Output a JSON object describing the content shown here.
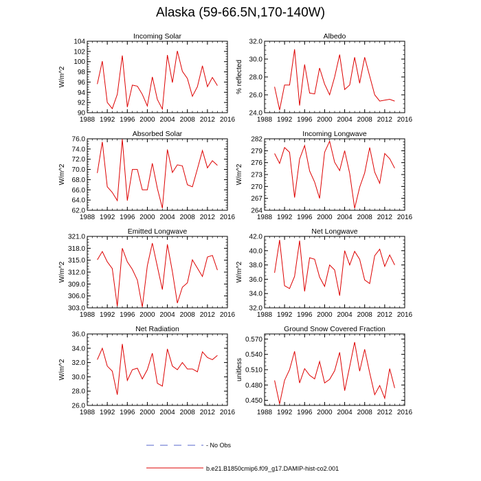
{
  "title": "Alaska (59-66.5N,170-140W)",
  "legend": {
    "obs_label": "- No Obs",
    "obs_color": "#5566cc",
    "model_label": "b.e21.B1850cmip6.f09_g17.DAMIP-hist-co2.001",
    "model_color": "#dd0000"
  },
  "chart_data": [
    {
      "type": "line",
      "title": "Incoming Solar",
      "ylabel": "W/m^2",
      "xlim": [
        1988,
        2016
      ],
      "ylim": [
        90,
        104
      ],
      "xticks": [
        "1988",
        "1992",
        "1996",
        "2000",
        "2004",
        "2008",
        "2012",
        "2016"
      ],
      "yticks": [
        "90",
        "92",
        "94",
        "96",
        "98",
        "100",
        "102",
        "104"
      ],
      "x": [
        1990,
        1991,
        1992,
        1993,
        1994,
        1995,
        1996,
        1997,
        1998,
        1999,
        2000,
        2001,
        2002,
        2003,
        2004,
        2005,
        2006,
        2007,
        2008,
        2009,
        2010,
        2011,
        2012,
        2013,
        2014
      ],
      "series": [
        {
          "values": [
            95.6,
            100.1,
            92.0,
            90.8,
            93.6,
            101.2,
            91.1,
            95.4,
            95.2,
            93.6,
            91.3,
            97.0,
            92.6,
            90.7,
            101.3,
            95.9,
            102.1,
            98.1,
            96.7,
            93.2,
            95.1,
            99.2,
            95.1,
            96.9,
            95.3
          ]
        }
      ]
    },
    {
      "type": "line",
      "title": "Albedo",
      "ylabel": "% reflected",
      "xlim": [
        1988,
        2016
      ],
      "ylim": [
        24.0,
        32.0
      ],
      "xticks": [
        "1988",
        "1992",
        "1996",
        "2000",
        "2004",
        "2008",
        "2012",
        "2016"
      ],
      "yticks": [
        "24.0",
        "26.0",
        "28.0",
        "30.0",
        "32.0"
      ],
      "x": [
        1990,
        1991,
        1992,
        1993,
        1994,
        1995,
        1996,
        1997,
        1998,
        1999,
        2000,
        2001,
        2002,
        2003,
        2004,
        2005,
        2006,
        2007,
        2008,
        2009,
        2010,
        2011,
        2012,
        2013,
        2014
      ],
      "series": [
        {
          "values": [
            26.9,
            24.3,
            27.1,
            27.1,
            31.1,
            24.8,
            29.4,
            26.2,
            26.1,
            29.0,
            27.2,
            26.0,
            28.0,
            30.5,
            26.6,
            27.1,
            30.2,
            27.3,
            30.2,
            28.1,
            26.0,
            25.3,
            25.4,
            25.5,
            25.3
          ]
        }
      ]
    },
    {
      "type": "line",
      "title": "Absorbed Solar",
      "ylabel": "W/m^2",
      "xlim": [
        1988,
        2016
      ],
      "ylim": [
        62.0,
        76.0
      ],
      "xticks": [
        "1988",
        "1992",
        "1996",
        "2000",
        "2004",
        "2008",
        "2012",
        "2016"
      ],
      "yticks": [
        "62.0",
        "64.0",
        "66.0",
        "68.0",
        "70.0",
        "72.0",
        "74.0",
        "76.0"
      ],
      "x": [
        1990,
        1991,
        1992,
        1993,
        1994,
        1995,
        1996,
        1997,
        1998,
        1999,
        2000,
        2001,
        2002,
        2003,
        2004,
        2005,
        2006,
        2007,
        2008,
        2009,
        2010,
        2011,
        2012,
        2013,
        2014
      ],
      "series": [
        {
          "values": [
            69.3,
            75.4,
            66.6,
            65.5,
            63.9,
            75.9,
            63.9,
            70.0,
            70.0,
            66.0,
            66.0,
            71.2,
            66.3,
            62.4,
            73.9,
            69.4,
            70.9,
            70.7,
            67.0,
            66.6,
            70.1,
            73.7,
            70.3,
            71.7,
            70.8
          ]
        }
      ]
    },
    {
      "type": "line",
      "title": "Incoming Longwave",
      "ylabel": "W/m^2",
      "xlim": [
        1988,
        2016
      ],
      "ylim": [
        264,
        282
      ],
      "xticks": [
        "1988",
        "1992",
        "1996",
        "2000",
        "2004",
        "2008",
        "2012",
        "2016"
      ],
      "yticks": [
        "264",
        "267",
        "270",
        "273",
        "276",
        "279",
        "282"
      ],
      "x": [
        1990,
        1991,
        1992,
        1993,
        1994,
        1995,
        1996,
        1997,
        1998,
        1999,
        2000,
        2001,
        2002,
        2003,
        2004,
        2005,
        2006,
        2007,
        2008,
        2009,
        2010,
        2011,
        2012,
        2013,
        2014
      ],
      "series": [
        {
          "values": [
            278.3,
            275.8,
            279.8,
            278.6,
            267.2,
            276.9,
            280.3,
            273.9,
            271.1,
            267.0,
            278.6,
            281.4,
            276.1,
            274.0,
            279.0,
            273.3,
            264.5,
            269.8,
            273.4,
            279.8,
            273.6,
            270.8,
            278.3,
            277.0,
            274.6
          ]
        }
      ]
    },
    {
      "type": "line",
      "title": "Emitted Longwave",
      "ylabel": "W/m^2",
      "xlim": [
        1988,
        2016
      ],
      "ylim": [
        303.0,
        321.0
      ],
      "xticks": [
        "1988",
        "1992",
        "1996",
        "2000",
        "2004",
        "2008",
        "2012",
        "2016"
      ],
      "yticks": [
        "303.0",
        "306.0",
        "309.0",
        "312.0",
        "315.0",
        "318.0",
        "321.0"
      ],
      "x": [
        1990,
        1991,
        1992,
        1993,
        1994,
        1995,
        1996,
        1997,
        1998,
        1999,
        2000,
        2001,
        2002,
        2003,
        2004,
        2005,
        2006,
        2007,
        2008,
        2009,
        2010,
        2011,
        2012,
        2013,
        2014
      ],
      "series": [
        {
          "values": [
            315.1,
            317.2,
            314.6,
            312.9,
            303.4,
            318.0,
            314.6,
            312.7,
            310.0,
            303.2,
            313.6,
            319.3,
            313.4,
            307.6,
            319.0,
            312.1,
            304.2,
            308.2,
            309.3,
            315.1,
            313.0,
            310.9,
            315.8,
            316.2,
            312.5
          ]
        }
      ]
    },
    {
      "type": "line",
      "title": "Net Longwave",
      "ylabel": "W/m^2",
      "xlim": [
        1988,
        2016
      ],
      "ylim": [
        32.0,
        42.0
      ],
      "xticks": [
        "1988",
        "1992",
        "1996",
        "2000",
        "2004",
        "2008",
        "2012",
        "2016"
      ],
      "yticks": [
        "32.0",
        "34.0",
        "36.0",
        "38.0",
        "40.0",
        "42.0"
      ],
      "x": [
        1990,
        1991,
        1992,
        1993,
        1994,
        1995,
        1996,
        1997,
        1998,
        1999,
        2000,
        2001,
        2002,
        2003,
        2004,
        2005,
        2006,
        2007,
        2008,
        2009,
        2010,
        2011,
        2012,
        2013,
        2014
      ],
      "series": [
        {
          "values": [
            36.9,
            41.5,
            35.1,
            34.7,
            36.4,
            41.4,
            34.3,
            39.0,
            38.8,
            36.3,
            35.0,
            38.0,
            37.3,
            33.7,
            40.0,
            38.0,
            39.9,
            38.8,
            35.9,
            35.4,
            39.3,
            40.2,
            37.8,
            39.4,
            38.0
          ]
        }
      ]
    },
    {
      "type": "line",
      "title": "Net Radiation",
      "ylabel": "W/m^2",
      "xlim": [
        1988,
        2016
      ],
      "ylim": [
        26.0,
        36.0
      ],
      "xticks": [
        "1988",
        "1992",
        "1996",
        "2000",
        "2004",
        "2008",
        "2012",
        "2016"
      ],
      "yticks": [
        "26.0",
        "28.0",
        "30.0",
        "32.0",
        "34.0",
        "36.0"
      ],
      "x": [
        1990,
        1991,
        1992,
        1993,
        1994,
        1995,
        1996,
        1997,
        1998,
        1999,
        2000,
        2001,
        2002,
        2003,
        2004,
        2005,
        2006,
        2007,
        2008,
        2009,
        2010,
        2011,
        2012,
        2013,
        2014
      ],
      "series": [
        {
          "values": [
            32.4,
            34.0,
            31.5,
            30.8,
            27.5,
            34.6,
            29.5,
            31.0,
            31.2,
            29.7,
            31.0,
            33.3,
            29.1,
            28.7,
            33.9,
            31.5,
            31.0,
            32.0,
            31.1,
            31.1,
            30.7,
            33.5,
            32.7,
            32.4,
            33.0
          ]
        }
      ]
    },
    {
      "type": "line",
      "title": "Ground Snow Covered Fraction",
      "ylabel": "unitless",
      "xlim": [
        1988,
        2016
      ],
      "ylim": [
        0.44,
        0.58
      ],
      "xticks": [
        "1988",
        "1992",
        "1996",
        "2000",
        "2004",
        "2008",
        "2012",
        "2016"
      ],
      "yticks": [
        "0.450",
        "0.480",
        "0.510",
        "0.540",
        "0.570"
      ],
      "x": [
        1990,
        1991,
        1992,
        1993,
        1994,
        1995,
        1996,
        1997,
        1998,
        1999,
        2000,
        2001,
        2002,
        2003,
        2004,
        2005,
        2006,
        2007,
        2008,
        2009,
        2010,
        2011,
        2012,
        2013,
        2014
      ],
      "series": [
        {
          "values": [
            0.489,
            0.443,
            0.489,
            0.51,
            0.546,
            0.484,
            0.512,
            0.499,
            0.492,
            0.526,
            0.484,
            0.491,
            0.508,
            0.544,
            0.469,
            0.516,
            0.564,
            0.507,
            0.55,
            0.504,
            0.461,
            0.479,
            0.454,
            0.512,
            0.474
          ]
        }
      ]
    }
  ]
}
